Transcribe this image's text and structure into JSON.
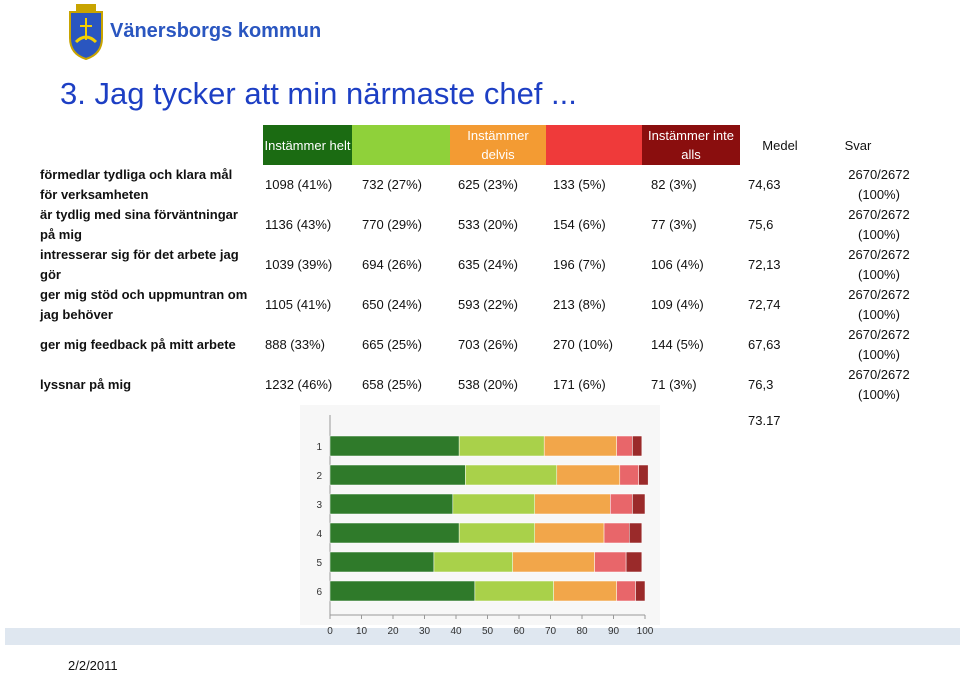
{
  "header": {
    "brand": "Vänersborgs kommun",
    "title": "3. Jag tycker att min närmaste chef ..."
  },
  "table": {
    "headers": [
      "Instämmer helt",
      "",
      "Instämmer delvis",
      "",
      "Instämmer inte alls",
      "Medel",
      "Svar"
    ],
    "header_colors": [
      "#1b6b12",
      "#8fd13a",
      "#f39b33",
      "#ef3a3a",
      "#8a0e0e",
      null,
      null
    ],
    "rows": [
      [
        "förmedlar tydliga och klara mål för verksamheten",
        "1098 (41%)",
        "732 (27%)",
        "625 (23%)",
        "133 (5%)",
        "82 (3%)",
        "74,63",
        "2670/2672 (100%)"
      ],
      [
        "är tydlig med sina förväntningar på mig",
        "1136 (43%)",
        "770 (29%)",
        "533 (20%)",
        "154 (6%)",
        "77 (3%)",
        "75,6",
        "2670/2672 (100%)"
      ],
      [
        "intresserar sig för det arbete jag gör",
        "1039 (39%)",
        "694 (26%)",
        "635 (24%)",
        "196 (7%)",
        "106 (4%)",
        "72,13",
        "2670/2672 (100%)"
      ],
      [
        "ger mig stöd och uppmuntran om jag behöver",
        "1105 (41%)",
        "650 (24%)",
        "593 (22%)",
        "213 (8%)",
        "109 (4%)",
        "72,74",
        "2670/2672 (100%)"
      ],
      [
        "ger mig feedback på mitt arbete",
        "888 (33%)",
        "665 (25%)",
        "703 (26%)",
        "270 (10%)",
        "144 (5%)",
        "67,63",
        "2670/2672 (100%)"
      ],
      [
        "lyssnar på mig",
        "1232 (46%)",
        "658 (25%)",
        "538 (20%)",
        "171 (6%)",
        "71 (3%)",
        "76,3",
        "2670/2672 (100%)"
      ]
    ]
  },
  "chart_data": {
    "type": "stacked_barh",
    "categories": [
      "1",
      "2",
      "3",
      "4",
      "5",
      "6"
    ],
    "series": [
      {
        "color": "#2f7a2a",
        "values": [
          41,
          43,
          39,
          41,
          33,
          46
        ]
      },
      {
        "color": "#a9d14a",
        "values": [
          27,
          29,
          26,
          24,
          25,
          25
        ]
      },
      {
        "color": "#f2a64a",
        "values": [
          23,
          20,
          24,
          22,
          26,
          20
        ]
      },
      {
        "color": "#e8666a",
        "values": [
          5,
          6,
          7,
          8,
          10,
          6
        ]
      },
      {
        "color": "#9a2a2a",
        "values": [
          3,
          3,
          4,
          4,
          5,
          3
        ]
      }
    ],
    "xlim": [
      0,
      100
    ],
    "xticks": [
      0,
      10,
      20,
      30,
      40,
      50,
      60,
      70,
      80,
      90,
      100
    ],
    "annotations": [
      "73.17"
    ]
  },
  "footer": {
    "date": "2/2/2011"
  }
}
